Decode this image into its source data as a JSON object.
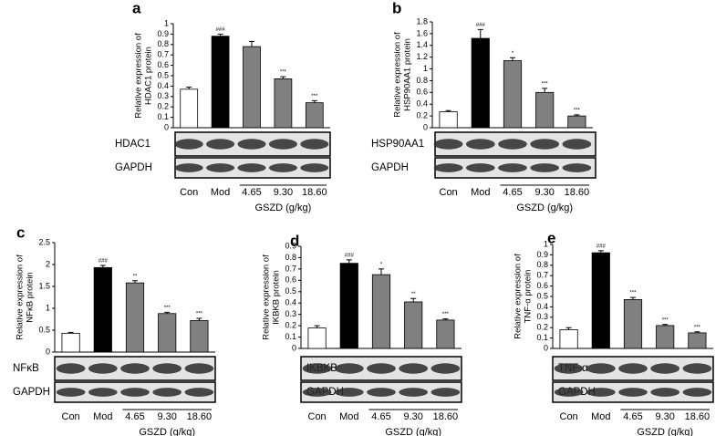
{
  "chart_data": [
    {
      "type": "bar",
      "panel": "a",
      "ylabel": [
        "Relative expression of",
        "HDAC1 protein"
      ],
      "categories": [
        "Con",
        "Mod",
        "4.65",
        "9.30",
        "18.60"
      ],
      "group_label": "GSZD (g/kg)",
      "values": [
        0.37,
        0.88,
        0.78,
        0.47,
        0.24
      ],
      "errors": [
        0.02,
        0.02,
        0.05,
        0.02,
        0.02
      ],
      "annotations": [
        null,
        "###",
        null,
        "***",
        "***"
      ],
      "colors": [
        "#ffffff",
        "#000000",
        "#808080",
        "#808080",
        "#808080"
      ],
      "ylim": [
        0,
        1
      ],
      "yticks": [
        0,
        0.1,
        0.2,
        0.3,
        0.4,
        0.5,
        0.6,
        0.7,
        0.8,
        0.9,
        1
      ],
      "blots": [
        "HDAC1",
        "GAPDH"
      ]
    },
    {
      "type": "bar",
      "panel": "b",
      "ylabel": [
        "Relative expression of",
        "HSP90AA1 protein"
      ],
      "categories": [
        "Con",
        "Mod",
        "4.65",
        "9.30",
        "18.60"
      ],
      "group_label": "GSZD (g/kg)",
      "values": [
        0.27,
        1.52,
        1.14,
        0.6,
        0.2
      ],
      "errors": [
        0.02,
        0.15,
        0.05,
        0.07,
        0.02
      ],
      "annotations": [
        null,
        "###",
        "*",
        "***",
        "***"
      ],
      "colors": [
        "#ffffff",
        "#000000",
        "#808080",
        "#808080",
        "#808080"
      ],
      "ylim": [
        0,
        1.8
      ],
      "yticks": [
        0,
        0.2,
        0.4,
        0.6,
        0.8,
        1,
        1.2,
        1.4,
        1.6,
        1.8
      ],
      "blots": [
        "HSP90AA1",
        "GAPDH"
      ]
    },
    {
      "type": "bar",
      "panel": "c",
      "ylabel": [
        "Relative expression of",
        "NFκB protein"
      ],
      "categories": [
        "Con",
        "Mod",
        "4.65",
        "9.30",
        "18.60"
      ],
      "group_label": "GSZD (g/kg)",
      "values": [
        0.43,
        1.93,
        1.58,
        0.88,
        0.72
      ],
      "errors": [
        0.02,
        0.05,
        0.05,
        0.03,
        0.05
      ],
      "annotations": [
        null,
        "###",
        "**",
        "***",
        "***"
      ],
      "colors": [
        "#ffffff",
        "#000000",
        "#808080",
        "#808080",
        "#808080"
      ],
      "ylim": [
        0,
        2.5
      ],
      "yticks": [
        0,
        0.5,
        1,
        1.5,
        2,
        2.5
      ],
      "blots": [
        "NFκB",
        "GAPDH"
      ]
    },
    {
      "type": "bar",
      "panel": "d",
      "ylabel": [
        "Relative expression of",
        "IKBKB protein"
      ],
      "categories": [
        "Con",
        "Mod",
        "4.65",
        "9.30",
        "18.60"
      ],
      "group_label": "GSZD (g/kg)",
      "values": [
        0.18,
        0.75,
        0.65,
        0.41,
        0.25
      ],
      "errors": [
        0.02,
        0.03,
        0.05,
        0.03,
        0.01
      ],
      "annotations": [
        null,
        "###",
        "*",
        "**",
        "***"
      ],
      "colors": [
        "#ffffff",
        "#000000",
        "#808080",
        "#808080",
        "#808080"
      ],
      "ylim": [
        0,
        0.9
      ],
      "yticks": [
        0,
        0.1,
        0.2,
        0.3,
        0.4,
        0.5,
        0.6,
        0.7,
        0.8,
        0.9
      ],
      "blots": [
        "IKBKB",
        "GAPDH"
      ]
    },
    {
      "type": "bar",
      "panel": "e",
      "ylabel": [
        "Relative expression of",
        "TNF-α protein"
      ],
      "categories": [
        "Con",
        "Mod",
        "4.65",
        "9.30",
        "18.60"
      ],
      "group_label": "GSZD (g/kg)",
      "values": [
        0.18,
        0.92,
        0.47,
        0.22,
        0.15
      ],
      "errors": [
        0.02,
        0.02,
        0.02,
        0.01,
        0.01
      ],
      "annotations": [
        null,
        "###",
        "***",
        "***",
        "***"
      ],
      "colors": [
        "#ffffff",
        "#000000",
        "#808080",
        "#808080",
        "#808080"
      ],
      "ylim": [
        0,
        1
      ],
      "yticks": [
        0,
        0.1,
        0.2,
        0.3,
        0.4,
        0.5,
        0.6,
        0.7,
        0.8,
        0.9,
        1
      ],
      "blots": [
        "TNF-α",
        "GAPDH"
      ]
    }
  ]
}
